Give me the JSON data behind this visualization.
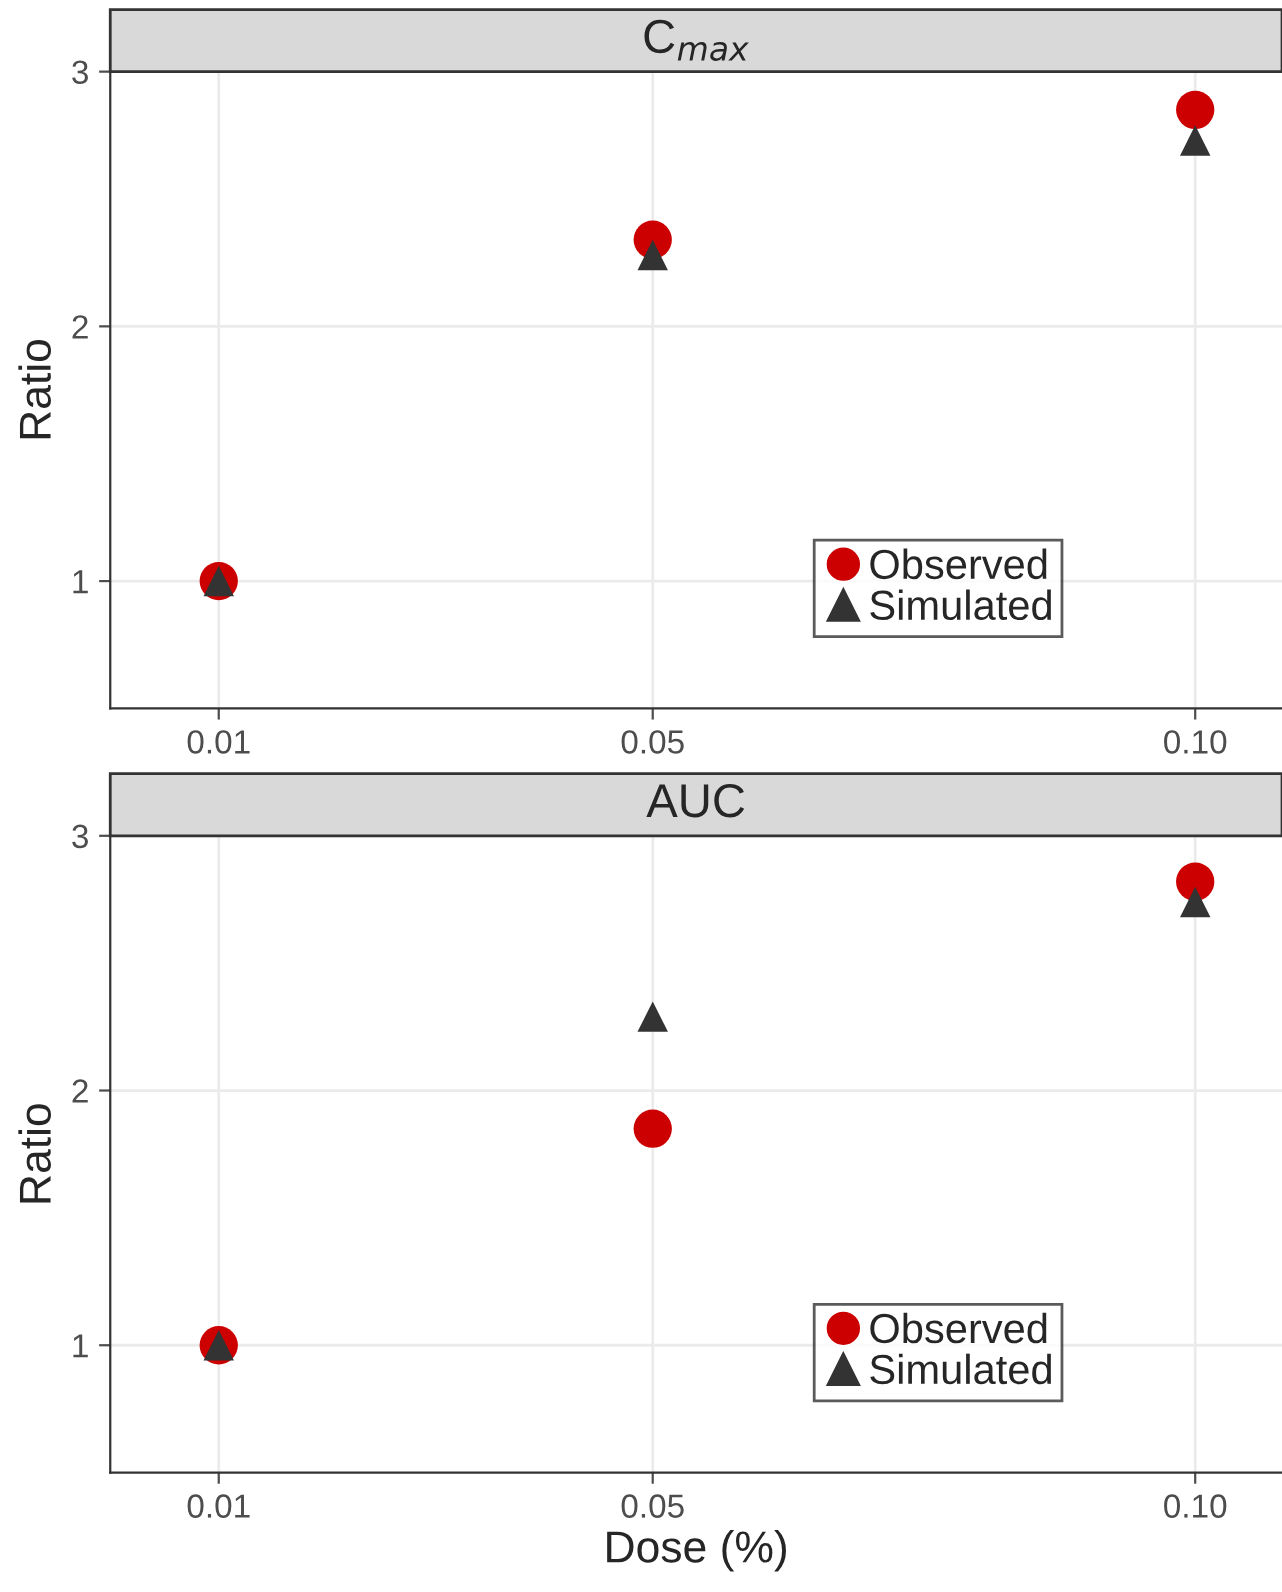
{
  "chart_data": [
    {
      "type": "scatter",
      "title": "C$_{max}$",
      "ylabel": "Ratio",
      "x": [
        0.01,
        0.05,
        0.1
      ],
      "xlim": [
        0.0,
        0.108
      ],
      "xticks": [
        {
          "value": 0.01,
          "label": "0.01"
        },
        {
          "value": 0.05,
          "label": "0.05"
        },
        {
          "value": 0.1,
          "label": "0.10"
        }
      ],
      "ylim": [
        0.5,
        3.0
      ],
      "yticks": [
        1,
        2,
        3
      ],
      "grid": true,
      "legend": "bottom right",
      "series": [
        {
          "name": "Observed",
          "color": "#cc0000",
          "marker": "circle",
          "values": [
            1.0,
            2.34,
            2.85
          ]
        },
        {
          "name": "Simulated",
          "color": "#333333",
          "marker": "triangle",
          "values": [
            1.0,
            2.28,
            2.73
          ]
        }
      ]
    },
    {
      "type": "scatter",
      "title": "AUC",
      "xlabel": "Dose (%)",
      "ylabel": "Ratio",
      "x": [
        0.01,
        0.05,
        0.1
      ],
      "xlim": [
        0.0,
        0.108
      ],
      "xticks": [
        {
          "value": 0.01,
          "label": "0.01"
        },
        {
          "value": 0.05,
          "label": "0.05"
        },
        {
          "value": 0.1,
          "label": "0.10"
        }
      ],
      "ylim": [
        0.5,
        3.0
      ],
      "yticks": [
        1,
        2,
        3
      ],
      "grid": true,
      "legend": "bottom right",
      "series": [
        {
          "name": "Observed",
          "color": "#cc0000",
          "marker": "circle",
          "values": [
            1.0,
            1.85,
            2.82
          ]
        },
        {
          "name": "Simulated",
          "color": "#333333",
          "marker": "triangle",
          "values": [
            1.0,
            2.29,
            2.74
          ]
        }
      ]
    }
  ]
}
